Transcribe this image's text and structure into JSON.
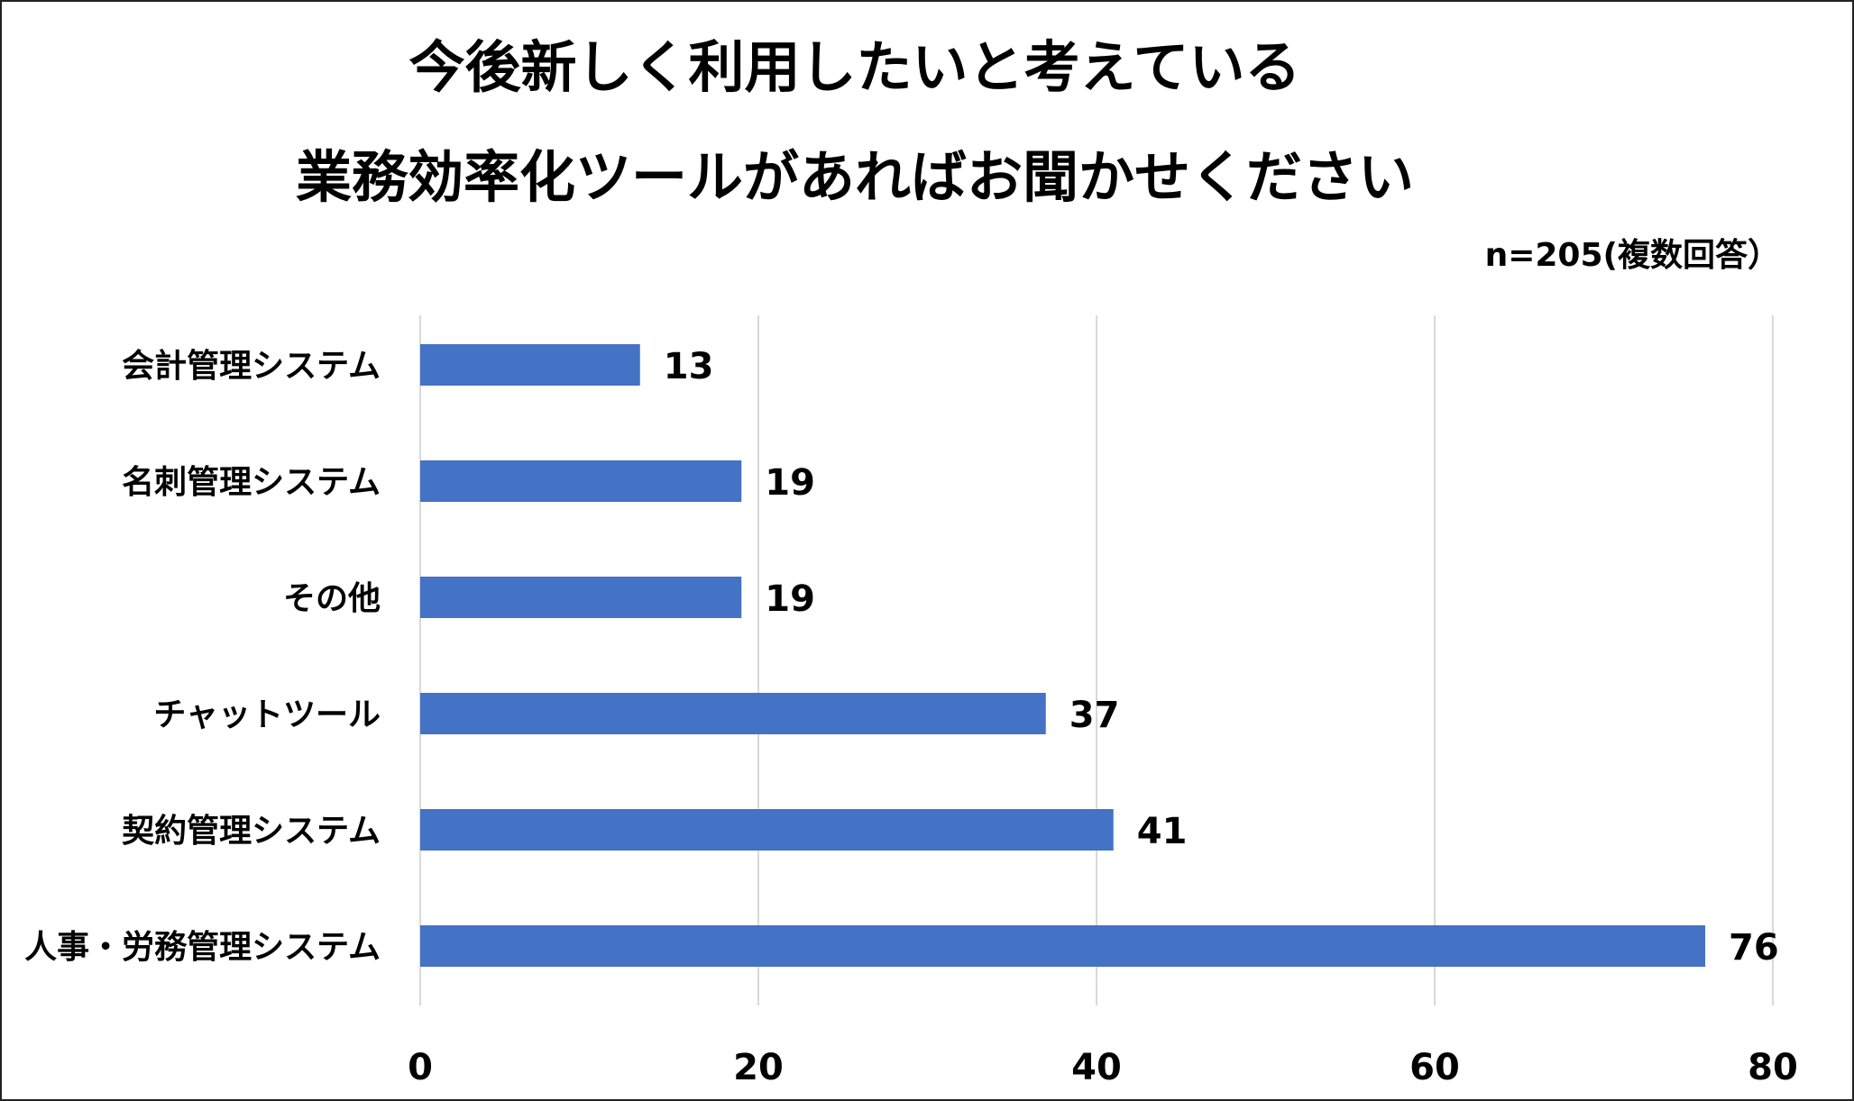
{
  "chart_data": {
    "type": "bar",
    "orientation": "horizontal",
    "title_lines": [
      "今後新しく利用したいと考えている",
      "業務効率化ツールがあればお聞かせください"
    ],
    "subtitle": "n=205(複数回答）",
    "categories": [
      "会計管理システム",
      "名刺管理システム",
      "その他",
      "チャットツール",
      "契約管理システム",
      "人事・労務管理システム"
    ],
    "values": [
      13,
      19,
      19,
      37,
      41,
      76
    ],
    "xlim": [
      0,
      80
    ],
    "xticks": [
      0,
      20,
      40,
      60,
      80
    ],
    "grid": true,
    "bar_color": "#4472C4",
    "grid_color": "#D9D9D9"
  }
}
